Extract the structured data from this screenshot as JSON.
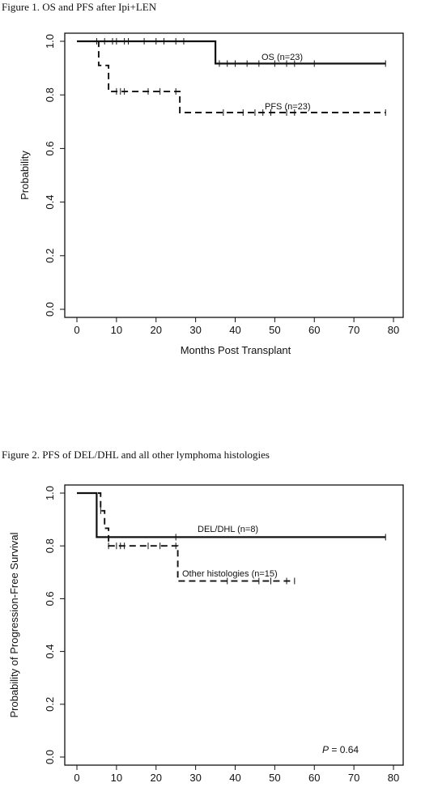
{
  "chart_data": [
    {
      "type": "line",
      "title": "Figure 1. OS and PFS after Ipi+LEN",
      "xlabel": "Months Post Transplant",
      "ylabel": "Probability",
      "xlim": [
        0,
        80
      ],
      "ylim": [
        0,
        1.0
      ],
      "xticks": [
        "0",
        "10",
        "20",
        "30",
        "40",
        "50",
        "60",
        "70",
        "80"
      ],
      "yticks": [
        "0.0",
        "0.2",
        "0.4",
        "0.6",
        "0.8",
        "1.0"
      ],
      "grid": false,
      "series": [
        {
          "name": "OS (n=23)",
          "style": "solid",
          "steps": [
            [
              0,
              1.0
            ],
            [
              35,
              0.917
            ],
            [
              78,
              0.917
            ]
          ],
          "censor": [
            5,
            7,
            9,
            10,
            12,
            13,
            17,
            20,
            22,
            25,
            27,
            36,
            38,
            40,
            43,
            46,
            50,
            53,
            55,
            60,
            78
          ]
        },
        {
          "name": "PFS (n=23)",
          "style": "dashed",
          "steps": [
            [
              0,
              1.0
            ],
            [
              5.5,
              0.91
            ],
            [
              8,
              0.813
            ],
            [
              26,
              0.734
            ],
            [
              78,
              0.734
            ]
          ],
          "censor": [
            10,
            11,
            12,
            18,
            21,
            25,
            37,
            42,
            45,
            47,
            49,
            53,
            55,
            78
          ]
        }
      ]
    },
    {
      "type": "line",
      "title": "Figure 2. PFS of DEL/DHL and all other lymphoma histologies",
      "xlabel": "",
      "ylabel": "Probability of Progression-Free Survival",
      "xlim": [
        0,
        80
      ],
      "ylim": [
        0,
        1.0
      ],
      "xticks": [
        "0",
        "10",
        "20",
        "30",
        "40",
        "50",
        "60",
        "70",
        "80"
      ],
      "yticks": [
        "0.0",
        "0.2",
        "0.4",
        "0.6",
        "0.8",
        "1.0"
      ],
      "grid": false,
      "annotation": "= 0.64",
      "annotation_symbol": "P",
      "series": [
        {
          "name": "DEL/DHL (n=8)",
          "style": "solid",
          "steps": [
            [
              0,
              1.0
            ],
            [
              5,
              0.833
            ],
            [
              78,
              0.833
            ]
          ],
          "censor": [
            25,
            78
          ]
        },
        {
          "name": "Other histologies (n=15)",
          "style": "dashed",
          "steps": [
            [
              0,
              1.0
            ],
            [
              6,
              0.933
            ],
            [
              7,
              0.867
            ],
            [
              8,
              0.8
            ],
            [
              25.5,
              0.667
            ],
            [
              55,
              0.667
            ]
          ],
          "censor": [
            6,
            8,
            10,
            11,
            12,
            18,
            21,
            25,
            38,
            46,
            49,
            53,
            55
          ]
        }
      ]
    }
  ]
}
